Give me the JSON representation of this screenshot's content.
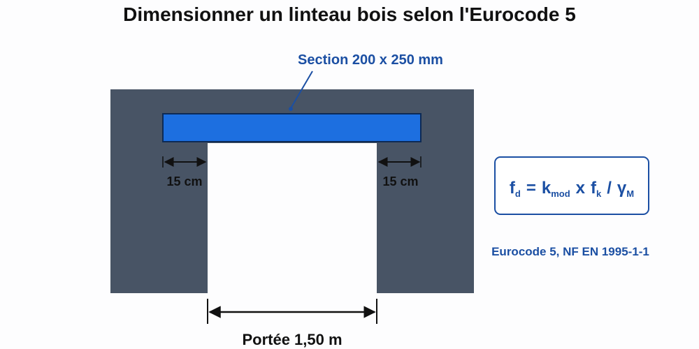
{
  "title": "Dimensionner un linteau bois selon l'Eurocode 5",
  "beam_label": "Section 200 x 250 mm",
  "bearing_left": "15 cm",
  "bearing_right": "15 cm",
  "span_label": "Portée 1,50 m",
  "formula": {
    "parts": [
      {
        "text": "f",
        "sub": "d"
      },
      {
        "text": "="
      },
      {
        "text": "k",
        "sub": "mod"
      },
      {
        "text": "x"
      },
      {
        "text": "f",
        "sub": "k"
      },
      {
        "text": "/"
      },
      {
        "text": "γ",
        "sub": "M"
      }
    ]
  },
  "reference": "Eurocode 5, NF EN 1995-1-1"
}
